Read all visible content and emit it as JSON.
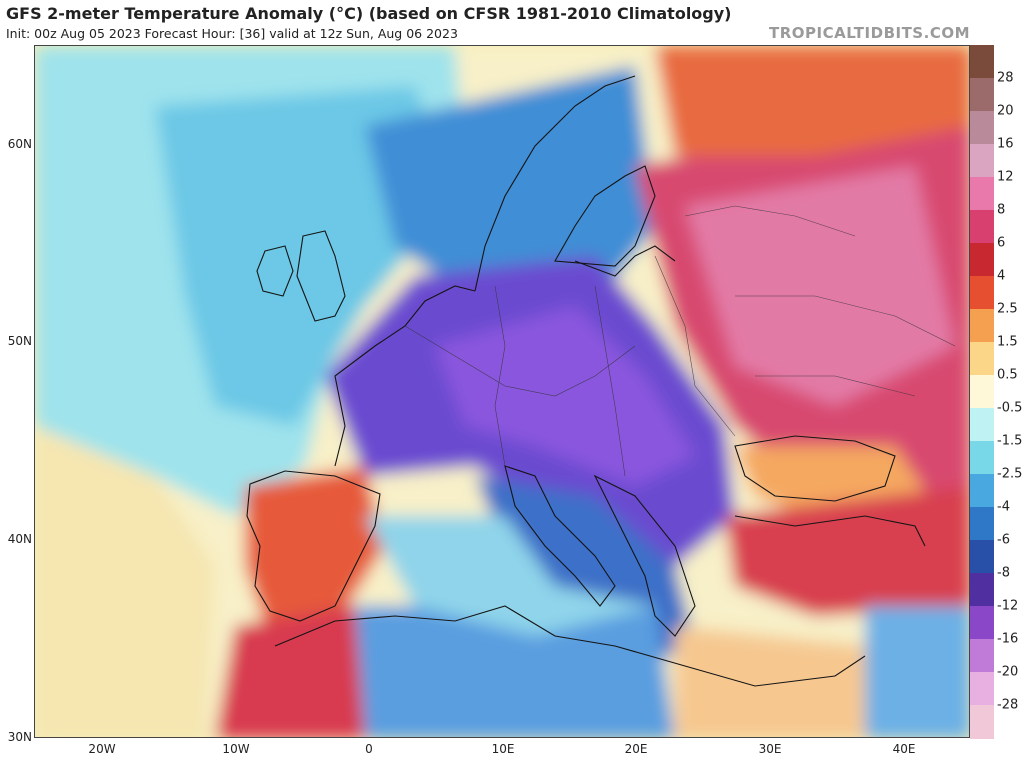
{
  "title": "GFS 2-meter Temperature Anomaly (°C) (based on CFSR 1981-2010 Climatology)",
  "subtitle": "Init: 00z Aug 05 2023   Forecast Hour: [36]   valid at 12z Sun, Aug 06 2023",
  "brand": "TROPICALTIDBITS.COM",
  "lat_labels": [
    "60N",
    "50N",
    "40N",
    "30N"
  ],
  "lon_labels": [
    "20W",
    "10W",
    "0",
    "10E",
    "20E",
    "30E",
    "40E"
  ],
  "colorbar": {
    "labels": [
      "28",
      "20",
      "16",
      "12",
      "8",
      "6",
      "4",
      "2.5",
      "1.5",
      "0.5",
      "-0.5",
      "-1.5",
      "-2.5",
      "-4",
      "-6",
      "-8",
      "-12",
      "-16",
      "-20",
      "-28"
    ],
    "colors": [
      "#7a4a3a",
      "#9b6a6a",
      "#b88a9a",
      "#d9a5c0",
      "#e879aa",
      "#d84070",
      "#c82830",
      "#e65030",
      "#f5a050",
      "#fbd588",
      "#fff8d8",
      "#bff2f2",
      "#79d8e8",
      "#4aa8e0",
      "#2f78c8",
      "#2850a8",
      "#5030a0",
      "#8a48c8",
      "#c07ad8",
      "#e8b0e0",
      "#f0c8d8"
    ]
  },
  "colors": {
    "sea_anomaly": "#8fd9e6",
    "cold_core": "#7a4fd6",
    "warm_core": "#d84a70",
    "coast": "#111111"
  }
}
